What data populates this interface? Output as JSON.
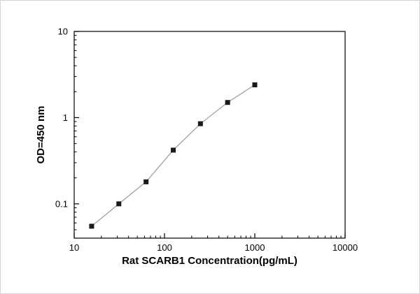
{
  "chart_data": {
    "type": "line",
    "title": "",
    "xlabel": "Rat SCARB1 Concentration(pg/mL)",
    "ylabel": "OD=450 nm",
    "x": [
      15.6,
      31.2,
      62.5,
      125,
      250,
      500,
      1000
    ],
    "y": [
      0.055,
      0.1,
      0.18,
      0.42,
      0.85,
      1.5,
      2.4
    ],
    "xscale": "log",
    "yscale": "log",
    "xlim": [
      10,
      10000
    ],
    "ylim": [
      0.04,
      10
    ],
    "x_ticks": [
      10,
      100,
      1000,
      10000
    ],
    "x_tick_labels": [
      "10",
      "100",
      "1000",
      "10000"
    ],
    "y_ticks": [
      0.1,
      1,
      10
    ],
    "y_tick_labels": [
      "0.1",
      "1",
      "10"
    ],
    "grid": false,
    "legend": null,
    "marker": "square",
    "colors": {
      "marker": "#1a1a1a",
      "line": "#9a9a9a",
      "axis": "#000000",
      "background": "#ffffff"
    }
  }
}
